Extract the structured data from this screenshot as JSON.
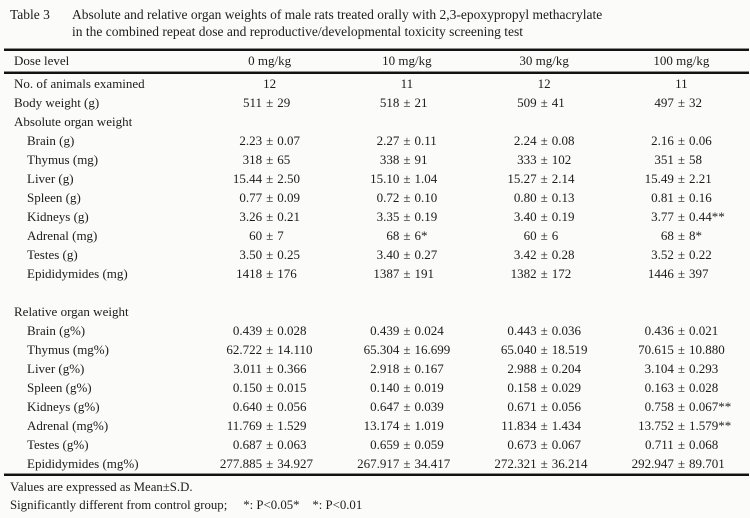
{
  "caption": {
    "label": "Table 3",
    "line1": "Absolute and relative organ weights of male rats treated orally with 2,3-epoxypropyl methacrylate",
    "line2": "in the combined repeat dose and reproductive/developmental toxicity screening test"
  },
  "table": {
    "columns": [
      "Dose level",
      "0 mg/kg",
      "10 mg/kg",
      "30 mg/kg",
      "100 mg/kg"
    ],
    "rows": [
      {
        "type": "plain",
        "indent": 0,
        "label": "No. of animals examined",
        "cells": [
          "12",
          "11",
          "12",
          "11"
        ]
      },
      {
        "type": "pm",
        "indent": 0,
        "label": "Body weight (g)",
        "cells": [
          "511 ± 29",
          "518 ± 21",
          "509 ± 41",
          "497 ± 32"
        ]
      },
      {
        "type": "section",
        "indent": 0,
        "label": "Absolute organ weight",
        "cells": []
      },
      {
        "type": "pm",
        "indent": 1,
        "label": "Brain (g)",
        "cells": [
          "2.23 ± 0.07",
          "2.27 ± 0.11",
          "2.24 ± 0.08",
          "2.16 ± 0.06"
        ]
      },
      {
        "type": "pm",
        "indent": 1,
        "label": "Thymus (mg)",
        "cells": [
          "318 ± 65",
          "338 ± 91",
          "333 ± 102",
          "351 ± 58"
        ]
      },
      {
        "type": "pm",
        "indent": 1,
        "label": "Liver (g)",
        "cells": [
          "15.44 ± 2.50",
          "15.10 ± 1.04",
          "15.27 ± 2.14",
          "15.49 ± 2.21"
        ]
      },
      {
        "type": "pm",
        "indent": 1,
        "label": "Spleen (g)",
        "cells": [
          "0.77 ± 0.09",
          "0.72 ± 0.10",
          "0.80 ± 0.13",
          "0.81 ± 0.16"
        ]
      },
      {
        "type": "pm",
        "indent": 1,
        "label": "Kidneys (g)",
        "cells": [
          "3.26 ± 0.21",
          "3.35 ± 0.19",
          "3.40 ± 0.19",
          "3.77 ± 0.44**"
        ]
      },
      {
        "type": "pm",
        "indent": 1,
        "label": "Adrenal (mg)",
        "cells": [
          "60 ± 7",
          "68 ± 6*",
          "60 ± 6",
          "68 ± 8*"
        ]
      },
      {
        "type": "pm",
        "indent": 1,
        "label": "Testes (g)",
        "cells": [
          "3.50 ± 0.25",
          "3.40 ± 0.27",
          "3.42 ± 0.28",
          "3.52 ± 0.22"
        ]
      },
      {
        "type": "pm",
        "indent": 1,
        "label": "Epididymides (mg)",
        "cells": [
          "1418 ± 176",
          "1387 ± 191",
          "1382 ± 172",
          "1446 ± 397"
        ]
      },
      {
        "type": "spacer",
        "indent": 0,
        "label": "",
        "cells": []
      },
      {
        "type": "section",
        "indent": 0,
        "label": "Relative organ weight",
        "cells": []
      },
      {
        "type": "pm",
        "indent": 1,
        "label": "Brain (g%)",
        "cells": [
          "0.439 ± 0.028",
          "0.439 ± 0.024",
          "0.443 ± 0.036",
          "0.436 ± 0.021"
        ]
      },
      {
        "type": "pm",
        "indent": 1,
        "label": "Thymus (mg%)",
        "cells": [
          "62.722 ± 14.110",
          "65.304 ± 16.699",
          "65.040 ± 18.519",
          "70.615 ± 10.880"
        ]
      },
      {
        "type": "pm",
        "indent": 1,
        "label": "Liver (g%)",
        "cells": [
          "3.011 ± 0.366",
          "2.918 ± 0.167",
          "2.988 ± 0.204",
          "3.104 ± 0.293"
        ]
      },
      {
        "type": "pm",
        "indent": 1,
        "label": "Spleen (g%)",
        "cells": [
          "0.150 ± 0.015",
          "0.140 ± 0.019",
          "0.158 ± 0.029",
          "0.163 ± 0.028"
        ]
      },
      {
        "type": "pm",
        "indent": 1,
        "label": "Kidneys (g%)",
        "cells": [
          "0.640 ± 0.056",
          "0.647 ± 0.039",
          "0.671 ± 0.056",
          "0.758 ± 0.067**"
        ]
      },
      {
        "type": "pm",
        "indent": 1,
        "label": "Adrenal (mg%)",
        "cells": [
          "11.769 ± 1.529",
          "13.174 ± 1.019",
          "11.834 ± 1.434",
          "13.752 ± 1.579**"
        ]
      },
      {
        "type": "pm",
        "indent": 1,
        "label": "Testes (g%)",
        "cells": [
          "0.687 ± 0.063",
          "0.659 ± 0.059",
          "0.673 ± 0.067",
          "0.711 ± 0.068"
        ]
      },
      {
        "type": "pm",
        "indent": 1,
        "label": "Epididymides (mg%)",
        "cells": [
          "277.885 ± 34.927",
          "267.917 ± 34.417",
          "272.321 ± 36.214",
          "292.947 ± 89.701"
        ]
      }
    ]
  },
  "footnotes": [
    "Values are expressed as Mean±S.D.",
    "Significantly different from control group;     *: P<0.05*    *: P<0.01"
  ]
}
